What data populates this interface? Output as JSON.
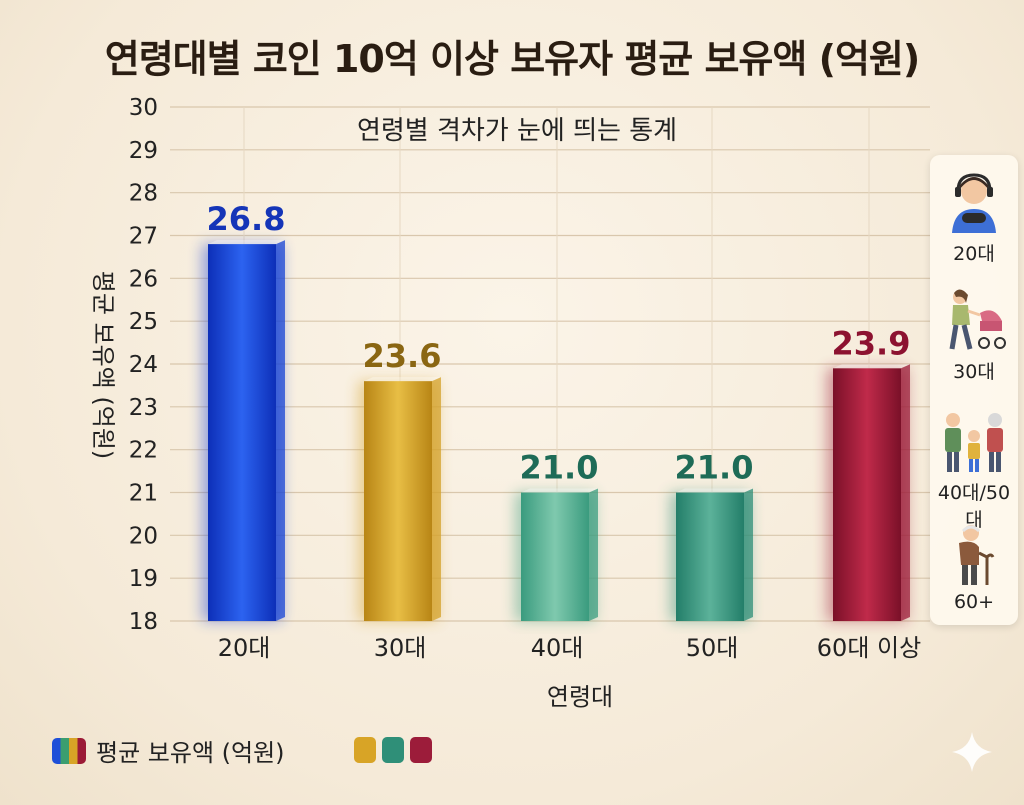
{
  "chart_data": {
    "type": "bar",
    "title": "연령대별 코인 10억 이상 보유자 평균 보유액 (억원)",
    "subtitle": "연령별 격차가 눈에 띄는 통계",
    "xlabel": "연령대",
    "ylabel": "평균 보유액 (억원)",
    "ylim": [
      18,
      30
    ],
    "yticks": [
      18,
      19,
      20,
      21,
      22,
      23,
      24,
      25,
      26,
      27,
      28,
      29,
      30
    ],
    "categories": [
      "20대",
      "30대",
      "40대",
      "50대",
      "60대 이상"
    ],
    "values": [
      26.8,
      23.6,
      21.0,
      21.0,
      23.9
    ],
    "data_labels": [
      "26.8",
      "23.6",
      "21.0",
      "21.0",
      "23.9"
    ],
    "colors": [
      "#1a45d6",
      "#d4a12a",
      "#3c9e80",
      "#2f8f78",
      "#9c1c3a"
    ],
    "label_colors": [
      "#1535b8",
      "#8a6612",
      "#1e6b57",
      "#1e6b57",
      "#8c1230"
    ],
    "grid": true,
    "legend": {
      "position": "bottom-left",
      "entries": [
        {
          "label": "평균 보유액 (억원)",
          "color": "#1a45d6"
        }
      ]
    }
  },
  "side_panel": {
    "items": [
      {
        "label": "20대",
        "icon": "gamer-person-icon"
      },
      {
        "label": "30대",
        "icon": "parent-stroller-icon"
      },
      {
        "label": "40대/50대",
        "icon": "family-icon"
      },
      {
        "label": "60+",
        "icon": "elderly-cane-icon"
      }
    ]
  }
}
